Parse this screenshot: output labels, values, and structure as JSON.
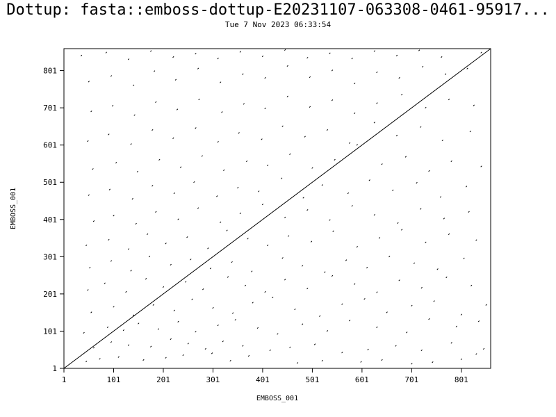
{
  "header": {
    "title": "Dottup: fasta::emboss-dottup-E20231107-063308-0461-95917...",
    "timestamp": "Tue  7 Nov 2023 06:33:54"
  },
  "chart_data": {
    "type": "scatter",
    "title": "Dottup: fasta::emboss-dottup-E20231107-063308-0461-95917...",
    "subtitle": "Tue  7 Nov 2023 06:33:54",
    "xlabel": "EMBOSS_001",
    "ylabel": "EMBOSS_001",
    "xlim": [
      1,
      860
    ],
    "ylim": [
      1,
      860
    ],
    "x_ticks": [
      1,
      101,
      201,
      301,
      401,
      501,
      601,
      701,
      801
    ],
    "y_ticks": [
      1,
      101,
      201,
      301,
      401,
      501,
      601,
      701,
      801
    ],
    "grid": false,
    "diagonal": {
      "x": [
        1,
        860
      ],
      "y": [
        1,
        860
      ]
    },
    "points": [
      [
        45,
        18
      ],
      [
        72,
        25
      ],
      [
        110,
        30
      ],
      [
        160,
        22
      ],
      [
        205,
        28
      ],
      [
        240,
        35
      ],
      [
        298,
        40
      ],
      [
        335,
        20
      ],
      [
        372,
        33
      ],
      [
        470,
        14
      ],
      [
        520,
        20
      ],
      [
        598,
        17
      ],
      [
        640,
        22
      ],
      [
        700,
        12
      ],
      [
        742,
        16
      ],
      [
        800,
        24
      ],
      [
        830,
        38
      ],
      [
        60,
        55
      ],
      [
        95,
        70
      ],
      [
        130,
        62
      ],
      [
        175,
        58
      ],
      [
        215,
        78
      ],
      [
        250,
        66
      ],
      [
        285,
        52
      ],
      [
        320,
        72
      ],
      [
        360,
        60
      ],
      [
        415,
        48
      ],
      [
        455,
        56
      ],
      [
        505,
        64
      ],
      [
        560,
        42
      ],
      [
        612,
        50
      ],
      [
        668,
        60
      ],
      [
        720,
        48
      ],
      [
        780,
        68
      ],
      [
        845,
        52
      ],
      [
        40,
        95
      ],
      [
        88,
        110
      ],
      [
        120,
        102
      ],
      [
        150,
        120
      ],
      [
        190,
        105
      ],
      [
        230,
        125
      ],
      [
        265,
        98
      ],
      [
        310,
        115
      ],
      [
        345,
        130
      ],
      [
        390,
        108
      ],
      [
        430,
        92
      ],
      [
        480,
        118
      ],
      [
        530,
        100
      ],
      [
        575,
        128
      ],
      [
        630,
        110
      ],
      [
        690,
        96
      ],
      [
        735,
        132
      ],
      [
        790,
        112
      ],
      [
        835,
        126
      ],
      [
        55,
        150
      ],
      [
        100,
        165
      ],
      [
        140,
        142
      ],
      [
        180,
        170
      ],
      [
        222,
        155
      ],
      [
        258,
        185
      ],
      [
        300,
        162
      ],
      [
        340,
        148
      ],
      [
        380,
        176
      ],
      [
        420,
        190
      ],
      [
        465,
        158
      ],
      [
        515,
        140
      ],
      [
        560,
        172
      ],
      [
        605,
        186
      ],
      [
        650,
        150
      ],
      [
        700,
        168
      ],
      [
        745,
        180
      ],
      [
        800,
        144
      ],
      [
        850,
        170
      ],
      [
        48,
        210
      ],
      [
        82,
        228
      ],
      [
        125,
        205
      ],
      [
        165,
        240
      ],
      [
        200,
        218
      ],
      [
        245,
        232
      ],
      [
        280,
        212
      ],
      [
        330,
        245
      ],
      [
        365,
        222
      ],
      [
        405,
        205
      ],
      [
        445,
        238
      ],
      [
        490,
        214
      ],
      [
        540,
        248
      ],
      [
        585,
        226
      ],
      [
        630,
        204
      ],
      [
        675,
        236
      ],
      [
        720,
        216
      ],
      [
        770,
        244
      ],
      [
        820,
        222
      ],
      [
        52,
        270
      ],
      [
        95,
        288
      ],
      [
        135,
        262
      ],
      [
        172,
        300
      ],
      [
        215,
        278
      ],
      [
        255,
        292
      ],
      [
        295,
        268
      ],
      [
        338,
        285
      ],
      [
        378,
        260
      ],
      [
        440,
        296
      ],
      [
        480,
        275
      ],
      [
        525,
        258
      ],
      [
        568,
        290
      ],
      [
        610,
        270
      ],
      [
        655,
        300
      ],
      [
        705,
        282
      ],
      [
        752,
        266
      ],
      [
        805,
        295
      ],
      [
        45,
        330
      ],
      [
        90,
        345
      ],
      [
        130,
        320
      ],
      [
        168,
        360
      ],
      [
        205,
        335
      ],
      [
        248,
        352
      ],
      [
        290,
        322
      ],
      [
        328,
        370
      ],
      [
        370,
        348
      ],
      [
        410,
        330
      ],
      [
        452,
        355
      ],
      [
        498,
        340
      ],
      [
        542,
        368
      ],
      [
        590,
        326
      ],
      [
        635,
        350
      ],
      [
        680,
        372
      ],
      [
        728,
        338
      ],
      [
        775,
        360
      ],
      [
        830,
        344
      ],
      [
        60,
        395
      ],
      [
        100,
        410
      ],
      [
        145,
        388
      ],
      [
        185,
        420
      ],
      [
        230,
        400
      ],
      [
        270,
        430
      ],
      [
        315,
        392
      ],
      [
        355,
        416
      ],
      [
        400,
        440
      ],
      [
        445,
        405
      ],
      [
        490,
        425
      ],
      [
        535,
        398
      ],
      [
        580,
        436
      ],
      [
        625,
        412
      ],
      [
        672,
        390
      ],
      [
        718,
        428
      ],
      [
        765,
        402
      ],
      [
        815,
        420
      ],
      [
        50,
        465
      ],
      [
        92,
        480
      ],
      [
        138,
        455
      ],
      [
        178,
        490
      ],
      [
        222,
        470
      ],
      [
        262,
        500
      ],
      [
        308,
        462
      ],
      [
        350,
        485
      ],
      [
        392,
        475
      ],
      [
        438,
        510
      ],
      [
        482,
        458
      ],
      [
        520,
        492
      ],
      [
        572,
        470
      ],
      [
        615,
        505
      ],
      [
        662,
        478
      ],
      [
        710,
        498
      ],
      [
        758,
        460
      ],
      [
        810,
        488
      ],
      [
        58,
        535
      ],
      [
        105,
        552
      ],
      [
        148,
        528
      ],
      [
        192,
        560
      ],
      [
        235,
        540
      ],
      [
        278,
        570
      ],
      [
        322,
        532
      ],
      [
        368,
        556
      ],
      [
        410,
        545
      ],
      [
        455,
        575
      ],
      [
        500,
        538
      ],
      [
        545,
        560
      ],
      [
        590,
        600
      ],
      [
        640,
        548
      ],
      [
        688,
        568
      ],
      [
        735,
        530
      ],
      [
        780,
        556
      ],
      [
        840,
        542
      ],
      [
        48,
        610
      ],
      [
        90,
        628
      ],
      [
        135,
        602
      ],
      [
        178,
        640
      ],
      [
        220,
        618
      ],
      [
        265,
        645
      ],
      [
        310,
        608
      ],
      [
        352,
        632
      ],
      [
        398,
        615
      ],
      [
        440,
        650
      ],
      [
        485,
        622
      ],
      [
        530,
        640
      ],
      [
        575,
        605
      ],
      [
        625,
        660
      ],
      [
        670,
        625
      ],
      [
        718,
        648
      ],
      [
        762,
        612
      ],
      [
        818,
        636
      ],
      [
        55,
        690
      ],
      [
        98,
        705
      ],
      [
        142,
        680
      ],
      [
        185,
        715
      ],
      [
        228,
        695
      ],
      [
        272,
        722
      ],
      [
        318,
        688
      ],
      [
        362,
        710
      ],
      [
        405,
        698
      ],
      [
        450,
        730
      ],
      [
        495,
        702
      ],
      [
        540,
        720
      ],
      [
        585,
        685
      ],
      [
        630,
        712
      ],
      [
        680,
        735
      ],
      [
        728,
        700
      ],
      [
        775,
        722
      ],
      [
        825,
        706
      ],
      [
        50,
        770
      ],
      [
        95,
        785
      ],
      [
        140,
        760
      ],
      [
        182,
        798
      ],
      [
        225,
        775
      ],
      [
        270,
        805
      ],
      [
        315,
        768
      ],
      [
        360,
        790
      ],
      [
        405,
        780
      ],
      [
        450,
        812
      ],
      [
        495,
        782
      ],
      [
        540,
        800
      ],
      [
        585,
        765
      ],
      [
        630,
        795
      ],
      [
        675,
        780
      ],
      [
        722,
        810
      ],
      [
        768,
        790
      ],
      [
        812,
        805
      ],
      [
        35,
        840
      ],
      [
        85,
        848
      ],
      [
        130,
        830
      ],
      [
        175,
        852
      ],
      [
        220,
        836
      ],
      [
        265,
        845
      ],
      [
        310,
        832
      ],
      [
        355,
        850
      ],
      [
        400,
        838
      ],
      [
        445,
        855
      ],
      [
        490,
        834
      ],
      [
        535,
        846
      ],
      [
        580,
        832
      ],
      [
        625,
        852
      ],
      [
        670,
        840
      ],
      [
        715,
        854
      ],
      [
        760,
        836
      ],
      [
        840,
        848
      ]
    ]
  }
}
